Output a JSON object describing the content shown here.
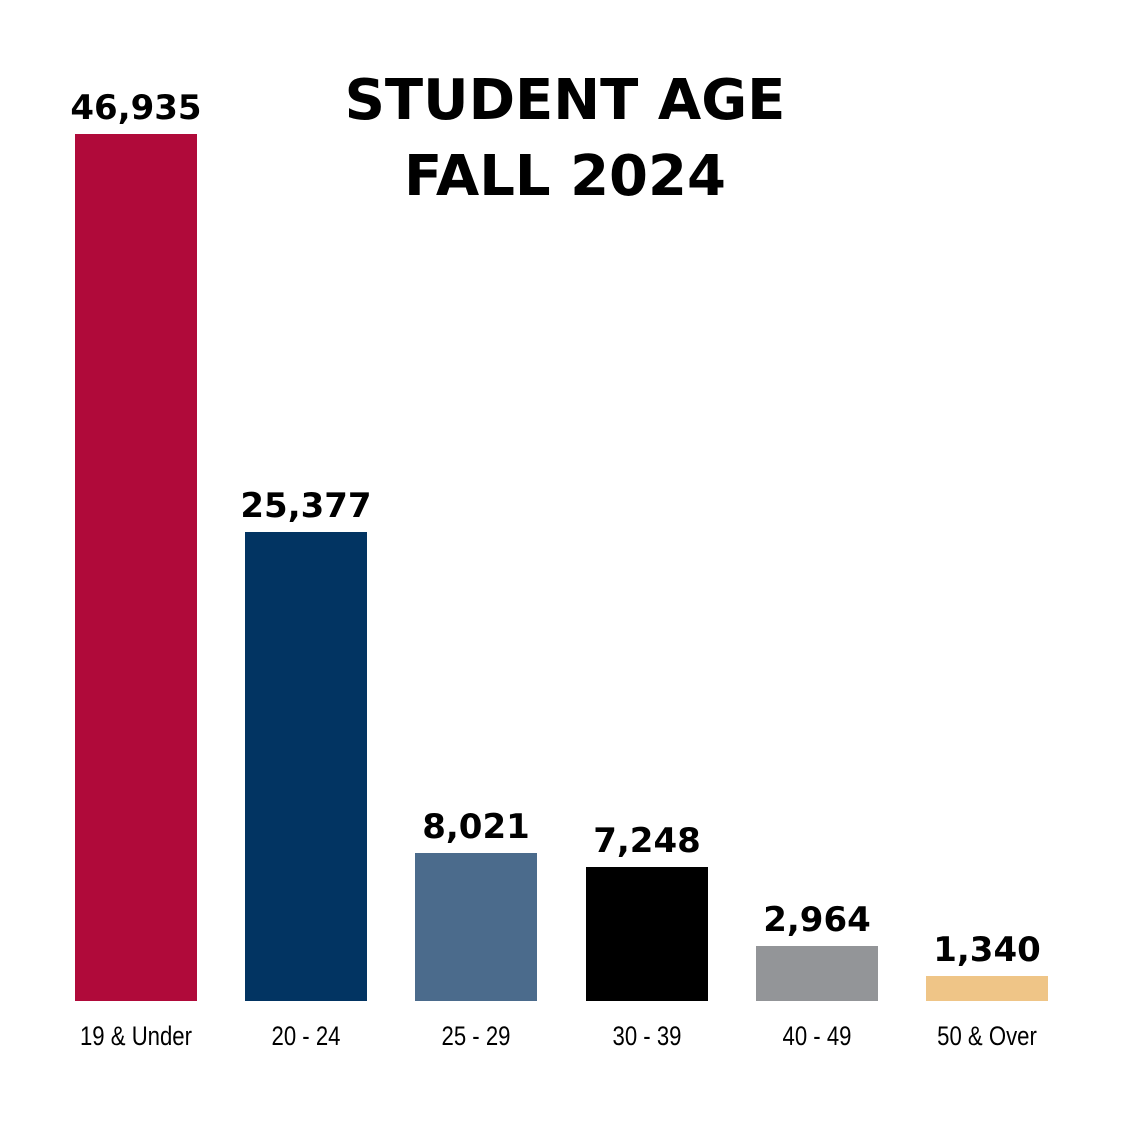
{
  "title": {
    "line1": "STUDENT AGE",
    "line2": "FALL 2024"
  },
  "chart_data": {
    "type": "bar",
    "title": "STUDENT AGE FALL 2024",
    "xlabel": "",
    "ylabel": "",
    "categories": [
      "19 & Under",
      "20 - 24",
      "25 - 29",
      "30 - 39",
      "40 - 49",
      "50 & Over"
    ],
    "values": [
      46935,
      25377,
      8021,
      7248,
      2964,
      1340
    ],
    "value_labels": [
      "46,935",
      "25,377",
      "8,021",
      "7,248",
      "2,964",
      "1,340"
    ],
    "colors": [
      "#b00a3a",
      "#023462",
      "#4b6b8c",
      "#000000",
      "#939598",
      "#efc587"
    ],
    "grid": false,
    "legend": "none",
    "ylim": [
      0,
      46935
    ]
  }
}
